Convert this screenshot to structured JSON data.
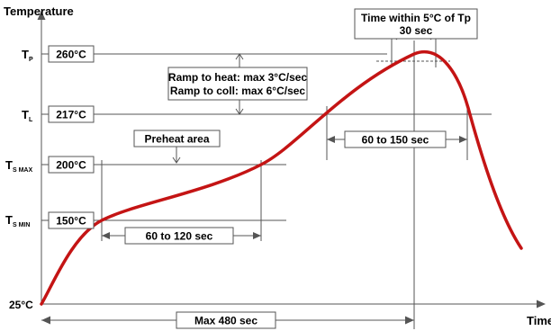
{
  "axes": {
    "y_label": "Temperature",
    "x_label": "Time",
    "origin_label": "25°C"
  },
  "temperature_levels": {
    "tp": {
      "label": "T",
      "sub": "P",
      "value": "260°C"
    },
    "tl": {
      "label": "T",
      "sub": "L",
      "value": "217°C"
    },
    "tsmax": {
      "label": "T",
      "sub": "S MAX",
      "value": "200°C"
    },
    "tsmin": {
      "label": "T",
      "sub": "S MIN",
      "value": "150°C"
    }
  },
  "annotations": {
    "peak_line1": "Time within 5°C of Tp",
    "peak_line2": "30 sec",
    "ramp_heat": "Ramp to heat: max 3°C/sec",
    "ramp_cool": "Ramp to coll: max 6°C/sec",
    "preheat": "Preheat area",
    "dur_preheat": "60 to 120 sec",
    "dur_liquidus": "60 to 150 sec",
    "dur_total": "Max 480 sec"
  },
  "colors": {
    "curve": "#c41414",
    "lines": "#555555",
    "text": "#000000"
  }
}
